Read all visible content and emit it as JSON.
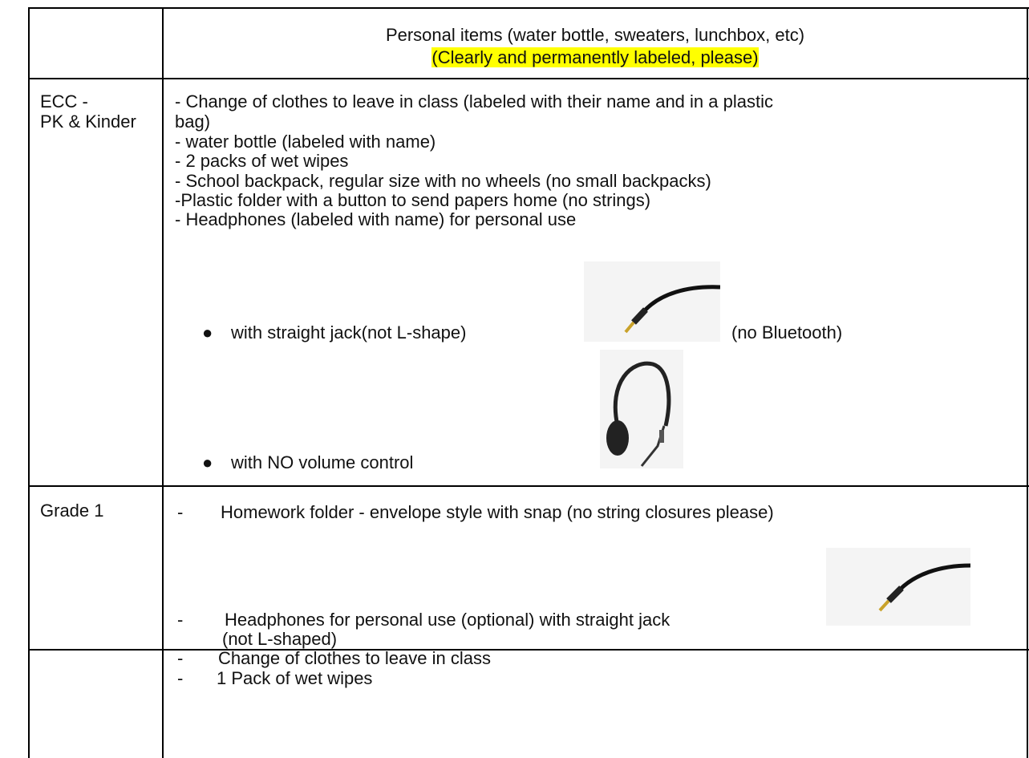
{
  "table": {
    "header": {
      "title": "Personal items (water bottle, sweaters, lunchbox, etc)",
      "note": "(Clearly and permanently labeled, please)"
    },
    "rows": [
      {
        "label": [
          "ECC -",
          "PK & Kinder"
        ],
        "items": [
          "- Change of clothes to leave in class (labeled with their name and in a plastic",
          "bag)",
          "- water bottle (labeled with name)",
          "- 2 packs of wet wipes",
          "- School backpack, regular size with no wheels (no small backpacks)",
          "-Plastic folder with a button to send papers home (no strings)",
          "- Headphones (labeled with name) for personal use"
        ],
        "bullets": [
          "with straight jack(not L-shape)",
          "(no Bluetooth)",
          "with NO volume control"
        ]
      },
      {
        "label": [
          "Grade 1"
        ],
        "items": [
          "Homework folder - envelope style with snap (no string closures please)",
          "Headphones for personal use (optional) with straight jack",
          "(not L-shaped)",
          "Change of clothes to leave in class",
          "1 Pack of wet wipes"
        ]
      }
    ]
  }
}
